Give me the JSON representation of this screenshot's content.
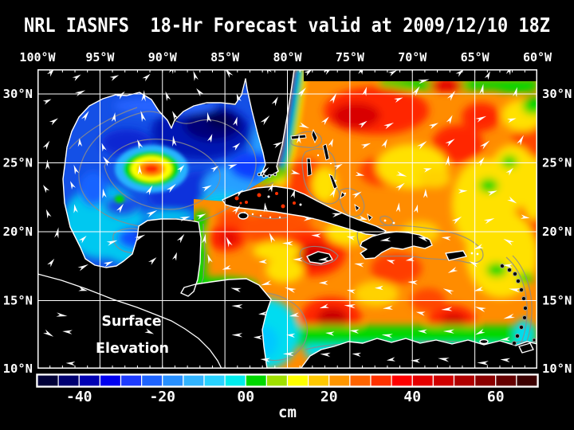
{
  "title": "NRL IASNFS  18-Hr Forecast valid at 2009/12/10 18Z",
  "axes": {
    "lon_labels": [
      "100°W",
      "95°W",
      "90°W",
      "85°W",
      "80°W",
      "75°W",
      "70°W",
      "65°W",
      "60°W"
    ],
    "lat_labels": [
      "30°N",
      "25°N",
      "20°N",
      "15°N",
      "10°N"
    ]
  },
  "field_label": {
    "line1": "Surface",
    "line2": "Elevation"
  },
  "colorbar": {
    "unit": "cm",
    "tick_labels": [
      "-40",
      "-20",
      "00",
      "20",
      "40",
      "60"
    ],
    "tick_boundary_cells": [
      2,
      6,
      10,
      14,
      18,
      22
    ],
    "min_cm": -50,
    "max_cm": 70,
    "interval_cm": 5,
    "colors": [
      "#000038",
      "#000072",
      "#0000b4",
      "#0000f0",
      "#1e3cff",
      "#1e64ff",
      "#2890ff",
      "#32b4ff",
      "#28d2ff",
      "#00ecec",
      "#00d800",
      "#a0e000",
      "#ffff00",
      "#ffc800",
      "#ff9600",
      "#ff6400",
      "#ff3200",
      "#ff0000",
      "#e60000",
      "#d00000",
      "#b00000",
      "#8c0000",
      "#660000",
      "#3c0000"
    ]
  },
  "chart_data": {
    "type": "heatmap",
    "title": "NRL IASNFS  18-Hr Forecast valid at 2009/12/10 18Z",
    "variable": "Surface Elevation",
    "units": "cm",
    "lon_range": [
      "100°W",
      "60°W"
    ],
    "lat_range": [
      "10°N",
      "30°N"
    ],
    "colorbar_range_cm": [
      -50,
      70
    ],
    "colorbar_interval_cm": 5,
    "features": [
      {
        "region": "Gulf of Mexico interior (cyclonic low)",
        "approx_value_cm": -40
      },
      {
        "region": "Warm-core eddy near 25N 90W (ring center)",
        "approx_value_cm": 25
      },
      {
        "region": "Western Gulf shelf / Bay of Campeche",
        "approx_value_cm": -15
      },
      {
        "region": "Gulf Stream / Straits of Florida and north of Cuba",
        "approx_value_cm": 45
      },
      {
        "region": "Atlantic east of Florida and Bahamas",
        "approx_value_cm": 35
      },
      {
        "region": "Central and eastern Caribbean highs",
        "approx_value_cm": 45
      },
      {
        "region": "Eastern Atlantic sector (yellow/green patches)",
        "approx_value_cm": 15
      },
      {
        "region": "Nicaraguan shelf and Venezuelan coastal band",
        "approx_value_cm": -10
      }
    ],
    "overlay_vectors": "white surface-current arrows",
    "grid": "5-degree white graticule"
  }
}
